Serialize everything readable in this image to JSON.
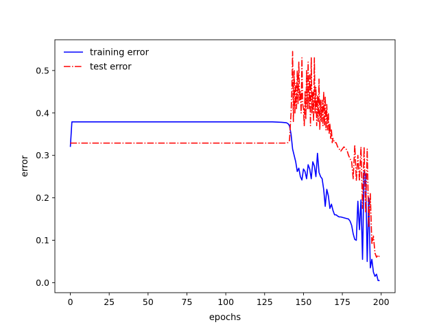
{
  "chart_data": {
    "type": "line",
    "title": "",
    "xlabel": "epochs",
    "ylabel": "error",
    "xlim": [
      -9.95,
      208.95
    ],
    "ylim": [
      -0.0235,
      0.5725
    ],
    "xticks": [
      0,
      25,
      50,
      75,
      100,
      125,
      150,
      175,
      200
    ],
    "yticks": [
      0.0,
      0.1,
      0.2,
      0.3,
      0.4,
      0.5
    ],
    "xtick_labels": [
      "0",
      "25",
      "50",
      "75",
      "100",
      "125",
      "150",
      "175",
      "200"
    ],
    "ytick_labels": [
      "0.0",
      "0.1",
      "0.2",
      "0.3",
      "0.4",
      "0.5"
    ],
    "grid": false,
    "legend_position": "upper left",
    "series": [
      {
        "name": "training error",
        "color": "#0000ff",
        "linestyle": "solid",
        "x": [
          0,
          1,
          10,
          30,
          60,
          100,
          130,
          136,
          139,
          140,
          141,
          142,
          143,
          144,
          145,
          146,
          147,
          148,
          149,
          150,
          151,
          152,
          153,
          154,
          155,
          156,
          157,
          158,
          159,
          160,
          161,
          162,
          163,
          164,
          165,
          166,
          167,
          168,
          169,
          170,
          171,
          172,
          173,
          174,
          175,
          176,
          177,
          178,
          179,
          180,
          181,
          182,
          183,
          184,
          185,
          186,
          187,
          188,
          189,
          190,
          191,
          192,
          193,
          194,
          195,
          196,
          197,
          198,
          199
        ],
        "y": [
          0.32,
          0.379,
          0.379,
          0.379,
          0.379,
          0.379,
          0.379,
          0.378,
          0.377,
          0.375,
          0.37,
          0.35,
          0.315,
          0.3,
          0.285,
          0.262,
          0.27,
          0.25,
          0.242,
          0.268,
          0.262,
          0.245,
          0.278,
          0.268,
          0.245,
          0.285,
          0.275,
          0.25,
          0.305,
          0.26,
          0.25,
          0.245,
          0.22,
          0.18,
          0.22,
          0.205,
          0.175,
          0.185,
          0.17,
          0.16,
          0.16,
          0.157,
          0.155,
          0.155,
          0.154,
          0.153,
          0.152,
          0.151,
          0.15,
          0.145,
          0.135,
          0.115,
          0.102,
          0.1,
          0.192,
          0.125,
          0.195,
          0.055,
          0.262,
          0.255,
          0.05,
          0.2,
          0.035,
          0.055,
          0.025,
          0.015,
          0.02,
          0.005,
          0.005
        ]
      },
      {
        "name": "test error",
        "color": "#ff0000",
        "linestyle": "dashdot",
        "x": [
          0,
          1,
          10,
          30,
          60,
          100,
          130,
          138,
          140,
          141,
          142,
          142.5,
          143,
          143.5,
          144,
          144.5,
          145,
          145.5,
          146,
          146.5,
          147,
          147.5,
          148,
          148.5,
          149,
          149.5,
          150,
          150.5,
          151,
          151.5,
          152,
          152.5,
          153,
          153.5,
          154,
          154.5,
          155,
          155.5,
          156,
          156.5,
          157,
          157.5,
          158,
          158.5,
          159,
          159.5,
          160,
          160.5,
          161,
          161.5,
          162,
          162.5,
          163,
          163.5,
          164,
          164.5,
          165,
          165.5,
          166,
          166.5,
          167,
          167.5,
          168,
          168.5,
          169,
          170,
          171,
          172,
          173,
          174,
          175,
          176,
          177,
          178,
          179,
          180,
          181,
          182,
          183,
          184,
          185,
          186,
          187,
          188,
          189,
          190,
          191,
          192,
          193,
          194,
          195,
          196,
          197,
          198,
          199
        ],
        "y": [
          0.329,
          0.329,
          0.329,
          0.329,
          0.329,
          0.329,
          0.329,
          0.329,
          0.33,
          0.335,
          0.4,
          0.45,
          0.545,
          0.38,
          0.5,
          0.4,
          0.47,
          0.41,
          0.5,
          0.42,
          0.52,
          0.43,
          0.45,
          0.4,
          0.53,
          0.42,
          0.41,
          0.37,
          0.45,
          0.385,
          0.5,
          0.41,
          0.52,
          0.41,
          0.49,
          0.37,
          0.53,
          0.4,
          0.45,
          0.38,
          0.53,
          0.4,
          0.46,
          0.37,
          0.44,
          0.38,
          0.48,
          0.36,
          0.43,
          0.38,
          0.43,
          0.37,
          0.45,
          0.37,
          0.44,
          0.36,
          0.42,
          0.36,
          0.4,
          0.35,
          0.375,
          0.34,
          0.36,
          0.33,
          0.34,
          0.33,
          0.33,
          0.32,
          0.315,
          0.31,
          0.315,
          0.32,
          0.317,
          0.312,
          0.3,
          0.292,
          0.285,
          0.245,
          0.325,
          0.24,
          0.3,
          0.24,
          0.32,
          0.175,
          0.32,
          0.165,
          0.315,
          0.13,
          0.21,
          0.09,
          0.11,
          0.07,
          0.06,
          0.065,
          0.06
        ]
      }
    ]
  }
}
